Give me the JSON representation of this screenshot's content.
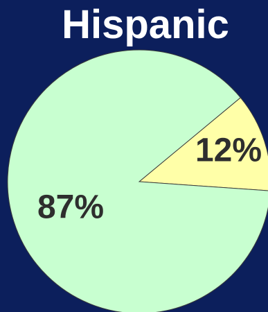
{
  "chart_data": {
    "type": "pie",
    "title": "Hispanic",
    "slices": [
      {
        "label": "12%",
        "value": 12,
        "color": "#ffffa8"
      },
      {
        "label": "87%",
        "value": 87,
        "color": "#c8ffd0"
      }
    ]
  }
}
